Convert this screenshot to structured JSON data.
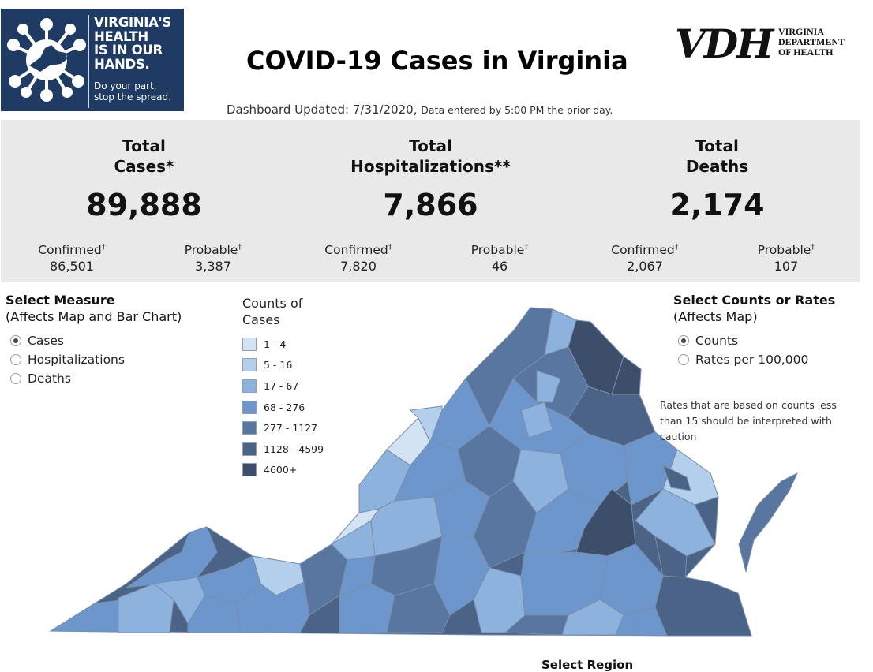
{
  "campaign": {
    "headline_lines": [
      "VIRGINIA'S",
      "HEALTH",
      "IS IN OUR",
      "HANDS."
    ],
    "sub_lines": [
      "Do your part,",
      "stop the spread."
    ],
    "logo_bg": "#1f3b63"
  },
  "dashboard": {
    "title": "COVID-19 Cases in Virginia",
    "updated_label": "Dashboard Updated: 7/31/2020,",
    "updated_note": "Data entered by 5:00 PM the prior day."
  },
  "agency": {
    "letters": "VDH",
    "name_lines": [
      "VIRGINIA",
      "DEPARTMENT",
      "OF HEALTH"
    ]
  },
  "stats": [
    {
      "title_lines": [
        "Total",
        "Cases*"
      ],
      "value": "89,888",
      "confirmed_label": "Confirmed",
      "confirmed": "86,501",
      "probable_label": "Probable",
      "probable": "3,387"
    },
    {
      "title_lines": [
        "Total",
        "Hospitalizations**"
      ],
      "value": "7,866",
      "confirmed_label": "Confirmed",
      "confirmed": "7,820",
      "probable_label": "Probable",
      "probable": "46"
    },
    {
      "title_lines": [
        "Total",
        "Deaths"
      ],
      "value": "2,174",
      "confirmed_label": "Confirmed",
      "confirmed": "2,067",
      "probable_label": "Probable",
      "probable": "107"
    }
  ],
  "dagger": "†",
  "measure_filter": {
    "title": "Select Measure",
    "subtitle": "(Affects Map and Bar Chart)",
    "options": [
      "Cases",
      "Hospitalizations",
      "Deaths"
    ],
    "selected": "Cases"
  },
  "rate_filter": {
    "title": "Select Counts or Rates",
    "subtitle": "(Affects Map)",
    "options": [
      "Counts",
      "Rates per 100,000"
    ],
    "selected": "Counts"
  },
  "legend": {
    "title_lines": [
      "Counts of",
      "Cases"
    ],
    "items": [
      {
        "label": "1 - 4",
        "color": "#d3e3f3"
      },
      {
        "label": "5 - 16",
        "color": "#b4cfec"
      },
      {
        "label": "17 - 67",
        "color": "#8eb2de"
      },
      {
        "label": "68 - 276",
        "color": "#6d96cd"
      },
      {
        "label": "277 - 1127",
        "color": "#58769f"
      },
      {
        "label": "1128 - 4599",
        "color": "#4a6386"
      },
      {
        "label": "4600+",
        "color": "#3c4e6a"
      }
    ]
  },
  "map_note": "Rates that are based on counts less than 15 should be interpreted with caution",
  "region_filter": {
    "title": "Select Region"
  }
}
